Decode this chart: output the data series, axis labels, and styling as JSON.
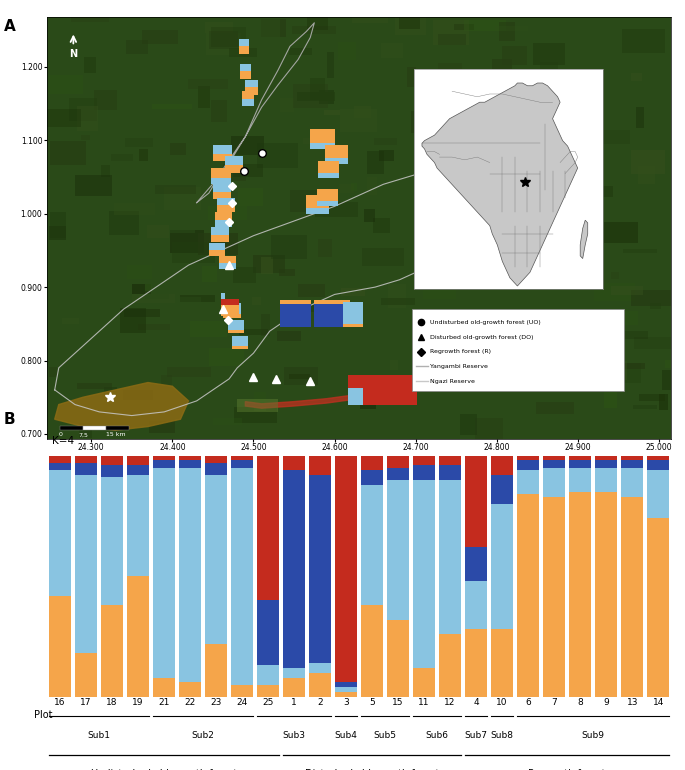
{
  "panel_b": {
    "plots": [
      "16",
      "17",
      "18",
      "19",
      "21",
      "22",
      "23",
      "24",
      "25",
      "1",
      "2",
      "3",
      "5",
      "15",
      "11",
      "12",
      "4",
      "10",
      "6",
      "7",
      "8",
      "9",
      "13",
      "14"
    ],
    "subgroups": [
      {
        "name": "Sub1",
        "plots": [
          "16",
          "17",
          "18",
          "19"
        ]
      },
      {
        "name": "Sub2",
        "plots": [
          "21",
          "22",
          "23",
          "24"
        ]
      },
      {
        "name": "Sub3",
        "plots": [
          "25",
          "1",
          "2"
        ]
      },
      {
        "name": "Sub4",
        "plots": [
          "3"
        ]
      },
      {
        "name": "Sub5",
        "plots": [
          "5",
          "15"
        ]
      },
      {
        "name": "Sub6",
        "plots": [
          "11",
          "12"
        ]
      },
      {
        "name": "Sub7",
        "plots": [
          "4"
        ]
      },
      {
        "name": "Sub8",
        "plots": [
          "10"
        ]
      },
      {
        "name": "Sub9",
        "plots": [
          "6",
          "7",
          "8",
          "9",
          "13",
          "14"
        ]
      }
    ],
    "forest_groups": [
      {
        "name": "Undisturbed old-growth forest",
        "plots": [
          "16",
          "17",
          "18",
          "19",
          "21",
          "22",
          "23",
          "24",
          "25"
        ]
      },
      {
        "name": "Disturbed old-growth forest",
        "plots": [
          "1",
          "2",
          "3",
          "5",
          "15",
          "11",
          "12"
        ]
      },
      {
        "name": "Regrowth forest",
        "plots": [
          "4",
          "10",
          "6",
          "7",
          "8",
          "9",
          "13",
          "14"
        ]
      }
    ],
    "colors": {
      "orange": "#F5A54A",
      "lightblue": "#89C4E1",
      "blue": "#2B4AA8",
      "red": "#C42B1E",
      "white": "#FFFFFF"
    },
    "bar_data": {
      "16": {
        "orange": 0.42,
        "lightblue": 0.52,
        "blue": 0.03,
        "red": 0.03
      },
      "17": {
        "orange": 0.18,
        "lightblue": 0.74,
        "blue": 0.05,
        "red": 0.03
      },
      "18": {
        "orange": 0.38,
        "lightblue": 0.53,
        "blue": 0.05,
        "red": 0.04
      },
      "19": {
        "orange": 0.5,
        "lightblue": 0.42,
        "blue": 0.04,
        "red": 0.04
      },
      "21": {
        "orange": 0.08,
        "lightblue": 0.87,
        "blue": 0.03,
        "red": 0.02
      },
      "22": {
        "orange": 0.06,
        "lightblue": 0.89,
        "blue": 0.03,
        "red": 0.02
      },
      "23": {
        "orange": 0.22,
        "lightblue": 0.7,
        "blue": 0.05,
        "red": 0.03
      },
      "24": {
        "orange": 0.05,
        "lightblue": 0.9,
        "blue": 0.03,
        "red": 0.02
      },
      "25": {
        "orange": 0.05,
        "lightblue": 0.08,
        "blue": 0.27,
        "red": 0.6
      },
      "1": {
        "orange": 0.08,
        "lightblue": 0.04,
        "blue": 0.82,
        "red": 0.06
      },
      "2": {
        "orange": 0.1,
        "lightblue": 0.04,
        "blue": 0.78,
        "red": 0.08
      },
      "3": {
        "orange": 0.02,
        "lightblue": 0.02,
        "blue": 0.02,
        "red": 0.94
      },
      "5": {
        "orange": 0.38,
        "lightblue": 0.5,
        "blue": 0.06,
        "red": 0.06
      },
      "15": {
        "orange": 0.32,
        "lightblue": 0.58,
        "blue": 0.05,
        "red": 0.05
      },
      "11": {
        "orange": 0.12,
        "lightblue": 0.78,
        "blue": 0.06,
        "red": 0.04
      },
      "12": {
        "orange": 0.26,
        "lightblue": 0.64,
        "blue": 0.06,
        "red": 0.04
      },
      "4": {
        "orange": 0.28,
        "lightblue": 0.2,
        "blue": 0.14,
        "red": 0.38
      },
      "10": {
        "orange": 0.28,
        "lightblue": 0.52,
        "blue": 0.12,
        "red": 0.08
      },
      "6": {
        "orange": 0.84,
        "lightblue": 0.1,
        "blue": 0.04,
        "red": 0.02
      },
      "7": {
        "orange": 0.83,
        "lightblue": 0.12,
        "blue": 0.03,
        "red": 0.02
      },
      "8": {
        "orange": 0.85,
        "lightblue": 0.1,
        "blue": 0.03,
        "red": 0.02
      },
      "9": {
        "orange": 0.85,
        "lightblue": 0.1,
        "blue": 0.03,
        "red": 0.02
      },
      "13": {
        "orange": 0.83,
        "lightblue": 0.12,
        "blue": 0.03,
        "red": 0.02
      },
      "14": {
        "orange": 0.74,
        "lightblue": 0.2,
        "blue": 0.04,
        "red": 0.02
      }
    }
  },
  "map": {
    "xlim": [
      24.245,
      25.015
    ],
    "ylim": [
      0.693,
      1.268
    ],
    "xticks": [
      24.3,
      24.4,
      24.5,
      24.6,
      24.7,
      24.8,
      24.9,
      25.0
    ],
    "yticks": [
      0.7,
      0.8,
      0.9,
      1.0,
      1.1,
      1.2
    ],
    "bg_color": "#2A4A18"
  }
}
